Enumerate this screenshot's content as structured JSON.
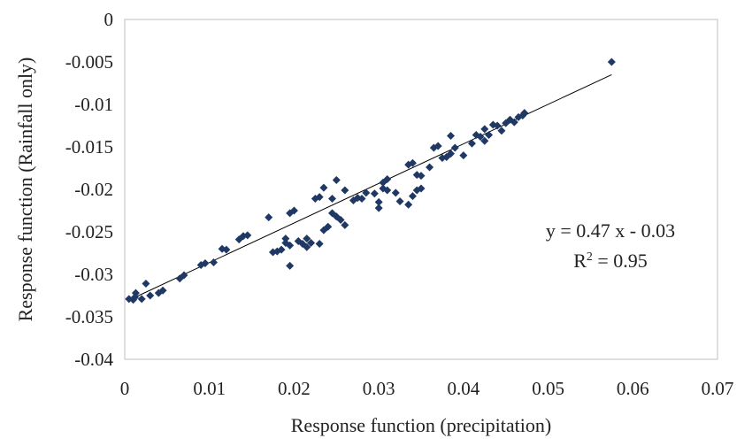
{
  "chart_data": {
    "type": "scatter",
    "xlabel": "Response function (precipitation)",
    "ylabel": "Response function (Rainfall only)",
    "xlim": [
      0,
      0.07
    ],
    "ylim": [
      -0.04,
      0
    ],
    "x_ticks": [
      "0",
      "0.01",
      "0.02",
      "0.03",
      "0.04",
      "0.05",
      "0.06",
      "0.07"
    ],
    "y_ticks": [
      "0",
      "-0.005",
      "-0.01",
      "-0.015",
      "-0.02",
      "-0.025",
      "-0.03",
      "-0.035",
      "-0.04"
    ],
    "grid": false,
    "legend": "none",
    "colors": {
      "points": "#1f3864",
      "trendline": "#000000",
      "frame": "#bfbfbf"
    },
    "annotation": {
      "equation": "y = 0.47 x - 0.03",
      "r2_prefix": "R",
      "r2_sup": "2",
      "r2_suffix": " = 0.95"
    },
    "trendline": {
      "x": [
        0.001,
        0.0575
      ],
      "y": [
        -0.0328,
        -0.0065
      ]
    },
    "series": [
      {
        "points": [
          [
            0.0005,
            -0.0329
          ],
          [
            0.001,
            -0.033
          ],
          [
            0.0012,
            -0.0327
          ],
          [
            0.0013,
            -0.0322
          ],
          [
            0.002,
            -0.0329
          ],
          [
            0.0025,
            -0.0311
          ],
          [
            0.003,
            -0.0325
          ],
          [
            0.004,
            -0.0322
          ],
          [
            0.0045,
            -0.0319
          ],
          [
            0.0065,
            -0.0305
          ],
          [
            0.007,
            -0.0301
          ],
          [
            0.009,
            -0.0289
          ],
          [
            0.0095,
            -0.0287
          ],
          [
            0.0105,
            -0.0286
          ],
          [
            0.0115,
            -0.027
          ],
          [
            0.012,
            -0.0271
          ],
          [
            0.0135,
            -0.0259
          ],
          [
            0.014,
            -0.0255
          ],
          [
            0.0145,
            -0.0254
          ],
          [
            0.017,
            -0.0233
          ],
          [
            0.0175,
            -0.0274
          ],
          [
            0.018,
            -0.0273
          ],
          [
            0.0185,
            -0.0271
          ],
          [
            0.019,
            -0.0263
          ],
          [
            0.0195,
            -0.0266
          ],
          [
            0.019,
            -0.0258
          ],
          [
            0.0195,
            -0.029
          ],
          [
            0.0195,
            -0.0228
          ],
          [
            0.02,
            -0.0225
          ],
          [
            0.0205,
            -0.0261
          ],
          [
            0.021,
            -0.0264
          ],
          [
            0.0215,
            -0.0258
          ],
          [
            0.022,
            -0.0263
          ],
          [
            0.0215,
            -0.0268
          ],
          [
            0.0225,
            -0.0211
          ],
          [
            0.023,
            -0.0209
          ],
          [
            0.023,
            -0.0264
          ],
          [
            0.0235,
            -0.0198
          ],
          [
            0.0235,
            -0.0248
          ],
          [
            0.024,
            -0.0244
          ],
          [
            0.0245,
            -0.0228
          ],
          [
            0.025,
            -0.0189
          ],
          [
            0.0245,
            -0.0211
          ],
          [
            0.025,
            -0.0232
          ],
          [
            0.0255,
            -0.0236
          ],
          [
            0.026,
            -0.0242
          ],
          [
            0.026,
            -0.0201
          ],
          [
            0.027,
            -0.0213
          ],
          [
            0.0275,
            -0.021
          ],
          [
            0.028,
            -0.0211
          ],
          [
            0.0285,
            -0.0204
          ],
          [
            0.0295,
            -0.0205
          ],
          [
            0.03,
            -0.0222
          ],
          [
            0.03,
            -0.0215
          ],
          [
            0.0305,
            -0.0199
          ],
          [
            0.031,
            -0.0201
          ],
          [
            0.031,
            -0.0188
          ],
          [
            0.0305,
            -0.0192
          ],
          [
            0.032,
            -0.0204
          ],
          [
            0.0325,
            -0.0214
          ],
          [
            0.0335,
            -0.0218
          ],
          [
            0.034,
            -0.0208
          ],
          [
            0.0345,
            -0.0201
          ],
          [
            0.035,
            -0.0199
          ],
          [
            0.0335,
            -0.0171
          ],
          [
            0.034,
            -0.0169
          ],
          [
            0.0345,
            -0.0183
          ],
          [
            0.035,
            -0.0184
          ],
          [
            0.036,
            -0.0174
          ],
          [
            0.0365,
            -0.0151
          ],
          [
            0.037,
            -0.0149
          ],
          [
            0.0375,
            -0.0163
          ],
          [
            0.038,
            -0.0162
          ],
          [
            0.0385,
            -0.0158
          ],
          [
            0.039,
            -0.0151
          ],
          [
            0.0385,
            -0.0137
          ],
          [
            0.04,
            -0.016
          ],
          [
            0.041,
            -0.0146
          ],
          [
            0.0415,
            -0.0136
          ],
          [
            0.042,
            -0.0138
          ],
          [
            0.0425,
            -0.0143
          ],
          [
            0.0425,
            -0.0129
          ],
          [
            0.043,
            -0.0136
          ],
          [
            0.0435,
            -0.0124
          ],
          [
            0.044,
            -0.0125
          ],
          [
            0.0445,
            -0.0131
          ],
          [
            0.045,
            -0.0122
          ],
          [
            0.0455,
            -0.0118
          ],
          [
            0.046,
            -0.0121
          ],
          [
            0.0465,
            -0.0115
          ],
          [
            0.047,
            -0.0113
          ],
          [
            0.0472,
            -0.011
          ],
          [
            0.0575,
            -0.005
          ]
        ]
      }
    ]
  }
}
